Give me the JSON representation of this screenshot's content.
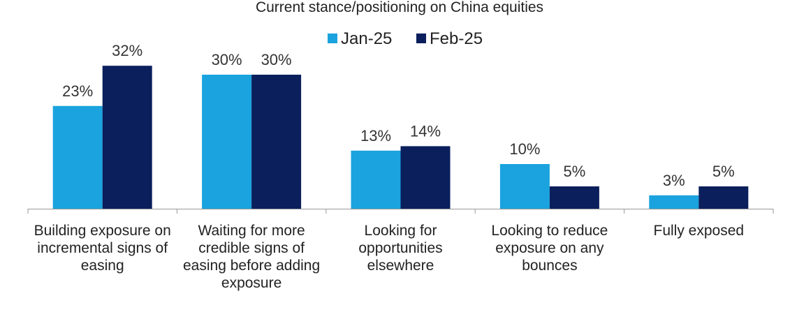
{
  "chart_data": {
    "type": "bar",
    "title": "Current stance/positioning on China equities",
    "categories": [
      "Building exposure on incremental signs of easing",
      "Waiting for more credible signs of easing before adding exposure",
      "Looking for opportunities elsewhere",
      "Looking to reduce exposure on any bounces",
      "Fully exposed"
    ],
    "series": [
      {
        "name": "Jan-25",
        "color": "#1aa3de",
        "values": [
          23,
          30,
          13,
          10,
          3
        ],
        "labels": [
          "23%",
          "30%",
          "13%",
          "10%",
          "3%"
        ]
      },
      {
        "name": "Feb-25",
        "color": "#0a1f5c",
        "values": [
          32,
          30,
          14,
          5,
          5
        ],
        "labels": [
          "32%",
          "30%",
          "14%",
          "5%",
          "5%"
        ]
      }
    ],
    "ylim": [
      0,
      32
    ],
    "xlabel": "",
    "ylabel": "",
    "grid": false,
    "legend_position": "top-center",
    "data_labels": true
  }
}
